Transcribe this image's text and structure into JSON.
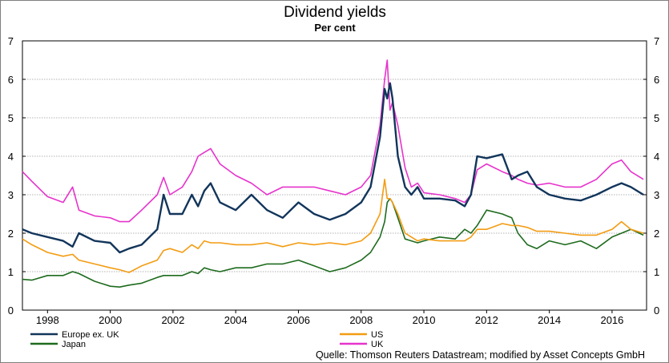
{
  "chart_data": {
    "type": "line",
    "title": "Dividend yields",
    "subtitle": "Per cent",
    "source": "Quelle: Thomson Reuters Datastream; modified by Asset Concepts GmbH",
    "xlabel": "",
    "ylabel": "",
    "ylim": [
      0,
      7
    ],
    "yticks": [
      0,
      1,
      2,
      3,
      4,
      5,
      6,
      7
    ],
    "xlim": [
      1997.2,
      2017.1
    ],
    "xticks": [
      1998,
      2000,
      2002,
      2004,
      2006,
      2008,
      2010,
      2012,
      2014,
      2016
    ],
    "grid": true,
    "legend_position": "bottom",
    "colors": {
      "europe_ex_uk": "#12355b",
      "us": "#f39c12",
      "japan": "#1e6b1e",
      "uk": "#e633cc",
      "grid": "#9a9a9a"
    },
    "x": [
      1997.2,
      1997.5,
      1998.0,
      1998.5,
      1998.8,
      1999.0,
      1999.5,
      2000.0,
      2000.3,
      2000.6,
      2001.0,
      2001.5,
      2001.7,
      2001.9,
      2002.3,
      2002.6,
      2002.8,
      2003.0,
      2003.2,
      2003.5,
      2004.0,
      2004.5,
      2005.0,
      2005.5,
      2006.0,
      2006.5,
      2007.0,
      2007.5,
      2008.0,
      2008.3,
      2008.6,
      2008.75,
      2008.83,
      2008.92,
      2009.0,
      2009.17,
      2009.4,
      2009.6,
      2009.8,
      2010.0,
      2010.5,
      2011.0,
      2011.3,
      2011.5,
      2011.7,
      2012.0,
      2012.5,
      2012.8,
      2013.0,
      2013.3,
      2013.6,
      2014.0,
      2014.5,
      2015.0,
      2015.5,
      2016.0,
      2016.3,
      2016.6,
      2017.0
    ],
    "series": [
      {
        "name": "Europe ex. UK",
        "values": [
          2.1,
          2.0,
          1.9,
          1.8,
          1.65,
          2.0,
          1.8,
          1.75,
          1.5,
          1.6,
          1.7,
          2.1,
          3.0,
          2.5,
          2.5,
          3.0,
          2.7,
          3.1,
          3.3,
          2.8,
          2.6,
          3.0,
          2.6,
          2.4,
          2.8,
          2.5,
          2.35,
          2.5,
          2.8,
          3.2,
          4.5,
          5.75,
          5.5,
          5.9,
          5.5,
          4.0,
          3.2,
          3.0,
          3.2,
          2.9,
          2.9,
          2.85,
          2.7,
          3.0,
          4.0,
          3.95,
          4.05,
          3.4,
          3.5,
          3.6,
          3.2,
          3.0,
          2.9,
          2.85,
          3.0,
          3.2,
          3.3,
          3.2,
          3.0
        ]
      },
      {
        "name": "US",
        "values": [
          1.85,
          1.7,
          1.5,
          1.4,
          1.45,
          1.3,
          1.2,
          1.1,
          1.05,
          0.98,
          1.15,
          1.3,
          1.55,
          1.6,
          1.5,
          1.7,
          1.6,
          1.8,
          1.75,
          1.75,
          1.7,
          1.7,
          1.75,
          1.65,
          1.75,
          1.7,
          1.75,
          1.7,
          1.8,
          2.0,
          2.5,
          3.4,
          2.9,
          2.9,
          2.8,
          2.5,
          2.0,
          1.9,
          1.8,
          1.85,
          1.8,
          1.8,
          1.8,
          1.9,
          2.1,
          2.1,
          2.25,
          2.2,
          2.2,
          2.15,
          2.05,
          2.05,
          2.0,
          1.95,
          1.95,
          2.1,
          2.3,
          2.1,
          2.0
        ]
      },
      {
        "name": "Japan",
        "values": [
          0.8,
          0.78,
          0.9,
          0.9,
          1.0,
          0.95,
          0.75,
          0.62,
          0.6,
          0.65,
          0.7,
          0.85,
          0.9,
          0.9,
          0.9,
          1.0,
          0.95,
          1.1,
          1.05,
          1.0,
          1.1,
          1.1,
          1.2,
          1.2,
          1.3,
          1.15,
          1.0,
          1.1,
          1.3,
          1.5,
          1.9,
          2.3,
          2.8,
          2.9,
          2.8,
          2.4,
          1.85,
          1.8,
          1.75,
          1.8,
          1.9,
          1.85,
          2.1,
          2.0,
          2.2,
          2.6,
          2.5,
          2.4,
          2.0,
          1.7,
          1.6,
          1.8,
          1.7,
          1.8,
          1.6,
          1.9,
          2.0,
          2.1,
          1.95
        ]
      },
      {
        "name": "UK",
        "values": [
          3.6,
          3.35,
          2.95,
          2.8,
          3.2,
          2.6,
          2.45,
          2.4,
          2.3,
          2.3,
          2.6,
          3.0,
          3.45,
          3.0,
          3.2,
          3.6,
          4.0,
          4.1,
          4.2,
          3.8,
          3.5,
          3.3,
          3.0,
          3.2,
          3.2,
          3.2,
          3.1,
          3.0,
          3.2,
          3.5,
          4.8,
          6.0,
          6.5,
          5.2,
          5.4,
          4.8,
          3.7,
          3.2,
          3.3,
          3.05,
          3.0,
          2.9,
          2.8,
          3.0,
          3.65,
          3.8,
          3.6,
          3.5,
          3.4,
          3.3,
          3.25,
          3.3,
          3.2,
          3.2,
          3.4,
          3.8,
          3.9,
          3.6,
          3.4
        ]
      }
    ]
  }
}
